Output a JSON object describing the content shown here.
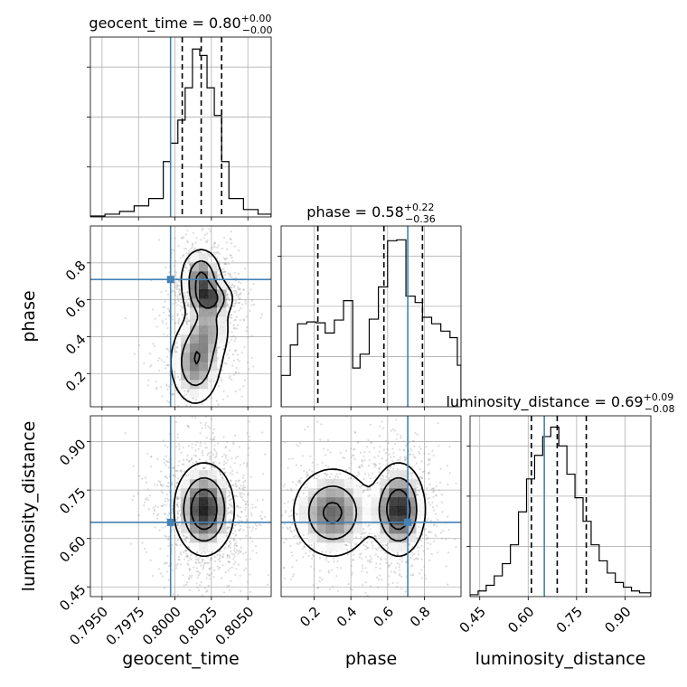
{
  "chart_data": {
    "type": "corner",
    "parameters": [
      {
        "key": "geocent_time",
        "label": "geocent_time",
        "title": {
          "name": "geocent_time",
          "value": "0.80",
          "plus": "+0.00",
          "minus": "−0.00"
        },
        "range": [
          0.7942,
          0.8066
        ],
        "ticks": [
          0.795,
          0.7975,
          0.8,
          0.8025,
          0.805
        ],
        "tick_labels": [
          "0.7950",
          "0.7975",
          "0.8000",
          "0.8025",
          "0.8050"
        ],
        "quantiles": [
          0.8005,
          0.8018,
          0.8032
        ],
        "truth": 0.7997,
        "hist_bins": [
          {
            "x0": 0.7942,
            "x1": 0.7952,
            "count": 1
          },
          {
            "x0": 0.7952,
            "x1": 0.7962,
            "count": 3
          },
          {
            "x0": 0.7962,
            "x1": 0.7972,
            "count": 6
          },
          {
            "x0": 0.7972,
            "x1": 0.7982,
            "count": 12
          },
          {
            "x0": 0.7982,
            "x1": 0.7992,
            "count": 20
          },
          {
            "x0": 0.7992,
            "x1": 0.7997,
            "count": 60
          },
          {
            "x0": 0.7997,
            "x1": 0.8002,
            "count": 80
          },
          {
            "x0": 0.8002,
            "x1": 0.8007,
            "count": 105
          },
          {
            "x0": 0.8007,
            "x1": 0.8012,
            "count": 140
          },
          {
            "x0": 0.8012,
            "x1": 0.8017,
            "count": 182
          },
          {
            "x0": 0.8017,
            "x1": 0.8022,
            "count": 175
          },
          {
            "x0": 0.8022,
            "x1": 0.8027,
            "count": 140
          },
          {
            "x0": 0.8027,
            "x1": 0.8032,
            "count": 110
          },
          {
            "x0": 0.8032,
            "x1": 0.8037,
            "count": 60
          },
          {
            "x0": 0.8037,
            "x1": 0.8047,
            "count": 20
          },
          {
            "x0": 0.8047,
            "x1": 0.8057,
            "count": 8
          },
          {
            "x0": 0.8057,
            "x1": 0.8066,
            "count": 3
          }
        ],
        "hist_max": 195
      },
      {
        "key": "phase",
        "label": "phase",
        "title": {
          "name": "phase",
          "value": "0.58",
          "plus": "+0.22",
          "minus": "−0.36"
        },
        "range": [
          0.02,
          1.0
        ],
        "ticks": [
          0.2,
          0.4,
          0.6,
          0.8
        ],
        "tick_labels": [
          "0.2",
          "0.4",
          "0.6",
          "0.8"
        ],
        "quantiles": [
          0.22,
          0.58,
          0.79
        ],
        "truth": 0.71,
        "hist_bins": [
          {
            "x0": 0.02,
            "x1": 0.07,
            "count": 34
          },
          {
            "x0": 0.07,
            "x1": 0.11,
            "count": 67
          },
          {
            "x0": 0.11,
            "x1": 0.16,
            "count": 90
          },
          {
            "x0": 0.16,
            "x1": 0.21,
            "count": 92
          },
          {
            "x0": 0.21,
            "x1": 0.26,
            "count": 91
          },
          {
            "x0": 0.26,
            "x1": 0.31,
            "count": 80
          },
          {
            "x0": 0.31,
            "x1": 0.36,
            "count": 94
          },
          {
            "x0": 0.36,
            "x1": 0.41,
            "count": 115
          },
          {
            "x0": 0.41,
            "x1": 0.45,
            "count": 42
          },
          {
            "x0": 0.45,
            "x1": 0.5,
            "count": 57
          },
          {
            "x0": 0.5,
            "x1": 0.55,
            "count": 95
          },
          {
            "x0": 0.55,
            "x1": 0.6,
            "count": 130
          },
          {
            "x0": 0.6,
            "x1": 0.65,
            "count": 180
          },
          {
            "x0": 0.65,
            "x1": 0.7,
            "count": 181
          },
          {
            "x0": 0.7,
            "x1": 0.75,
            "count": 120
          },
          {
            "x0": 0.75,
            "x1": 0.79,
            "count": 113
          },
          {
            "x0": 0.79,
            "x1": 0.84,
            "count": 97
          },
          {
            "x0": 0.84,
            "x1": 0.89,
            "count": 90
          },
          {
            "x0": 0.89,
            "x1": 0.94,
            "count": 82
          },
          {
            "x0": 0.94,
            "x1": 0.98,
            "count": 75
          },
          {
            "x0": 0.98,
            "x1": 1.0,
            "count": 45
          }
        ],
        "hist_max": 196
      },
      {
        "key": "luminosity_distance",
        "label": "luminosity_distance",
        "title": {
          "name": "luminosity_distance",
          "value": "0.69",
          "plus": "+0.09",
          "minus": "−0.08"
        },
        "range": [
          0.42,
          0.98
        ],
        "ticks": [
          0.45,
          0.6,
          0.75,
          0.9
        ],
        "tick_labels": [
          "0.45",
          "0.60",
          "0.75",
          "0.90"
        ],
        "quantiles": [
          0.61,
          0.69,
          0.78
        ],
        "truth": 0.65,
        "hist_bins": [
          {
            "x0": 0.42,
            "x1": 0.445,
            "count": 2
          },
          {
            "x0": 0.445,
            "x1": 0.47,
            "count": 6
          },
          {
            "x0": 0.47,
            "x1": 0.495,
            "count": 12
          },
          {
            "x0": 0.495,
            "x1": 0.52,
            "count": 22
          },
          {
            "x0": 0.52,
            "x1": 0.545,
            "count": 35
          },
          {
            "x0": 0.545,
            "x1": 0.57,
            "count": 55
          },
          {
            "x0": 0.57,
            "x1": 0.595,
            "count": 90
          },
          {
            "x0": 0.595,
            "x1": 0.62,
            "count": 125
          },
          {
            "x0": 0.62,
            "x1": 0.645,
            "count": 150
          },
          {
            "x0": 0.645,
            "x1": 0.67,
            "count": 170
          },
          {
            "x0": 0.67,
            "x1": 0.695,
            "count": 180
          },
          {
            "x0": 0.695,
            "x1": 0.72,
            "count": 160
          },
          {
            "x0": 0.72,
            "x1": 0.745,
            "count": 130
          },
          {
            "x0": 0.745,
            "x1": 0.77,
            "count": 105
          },
          {
            "x0": 0.77,
            "x1": 0.795,
            "count": 80
          },
          {
            "x0": 0.795,
            "x1": 0.82,
            "count": 55
          },
          {
            "x0": 0.82,
            "x1": 0.845,
            "count": 38
          },
          {
            "x0": 0.845,
            "x1": 0.87,
            "count": 25
          },
          {
            "x0": 0.87,
            "x1": 0.895,
            "count": 15
          },
          {
            "x0": 0.895,
            "x1": 0.92,
            "count": 10
          },
          {
            "x0": 0.92,
            "x1": 0.945,
            "count": 6
          },
          {
            "x0": 0.945,
            "x1": 0.98,
            "count": 4
          }
        ],
        "hist_max": 192
      }
    ],
    "pairs": [
      {
        "x": "geocent_time",
        "y": "phase",
        "truth": [
          0.7997,
          0.71
        ],
        "blobs": [
          {
            "cx": 0.8018,
            "cy": 0.72,
            "sx": 0.0007,
            "sy": 0.08,
            "w": 1.0
          },
          {
            "cx": 0.8024,
            "cy": 0.61,
            "sx": 0.0008,
            "sy": 0.05,
            "w": 0.9
          },
          {
            "cx": 0.8014,
            "cy": 0.26,
            "sx": 0.0009,
            "sy": 0.12,
            "w": 0.9
          },
          {
            "cx": 0.8023,
            "cy": 0.45,
            "sx": 0.0008,
            "sy": 0.1,
            "w": 0.6
          }
        ]
      },
      {
        "x": "geocent_time",
        "y": "luminosity_distance",
        "truth": [
          0.7997,
          0.65
        ],
        "blobs": [
          {
            "cx": 0.802,
            "cy": 0.69,
            "sx": 0.001,
            "sy": 0.07,
            "w": 1.0
          }
        ]
      },
      {
        "x": "phase",
        "y": "luminosity_distance",
        "truth": [
          0.71,
          0.65
        ],
        "blobs": [
          {
            "cx": 0.66,
            "cy": 0.69,
            "sx": 0.07,
            "sy": 0.07,
            "w": 1.0
          },
          {
            "cx": 0.3,
            "cy": 0.68,
            "sx": 0.11,
            "sy": 0.07,
            "w": 0.75
          }
        ]
      }
    ],
    "colors": {
      "truth": "#4682b4",
      "hist": "#000000",
      "contour": "#000000",
      "density": "#000000",
      "points": "#9a9a9a"
    },
    "grid": true
  }
}
